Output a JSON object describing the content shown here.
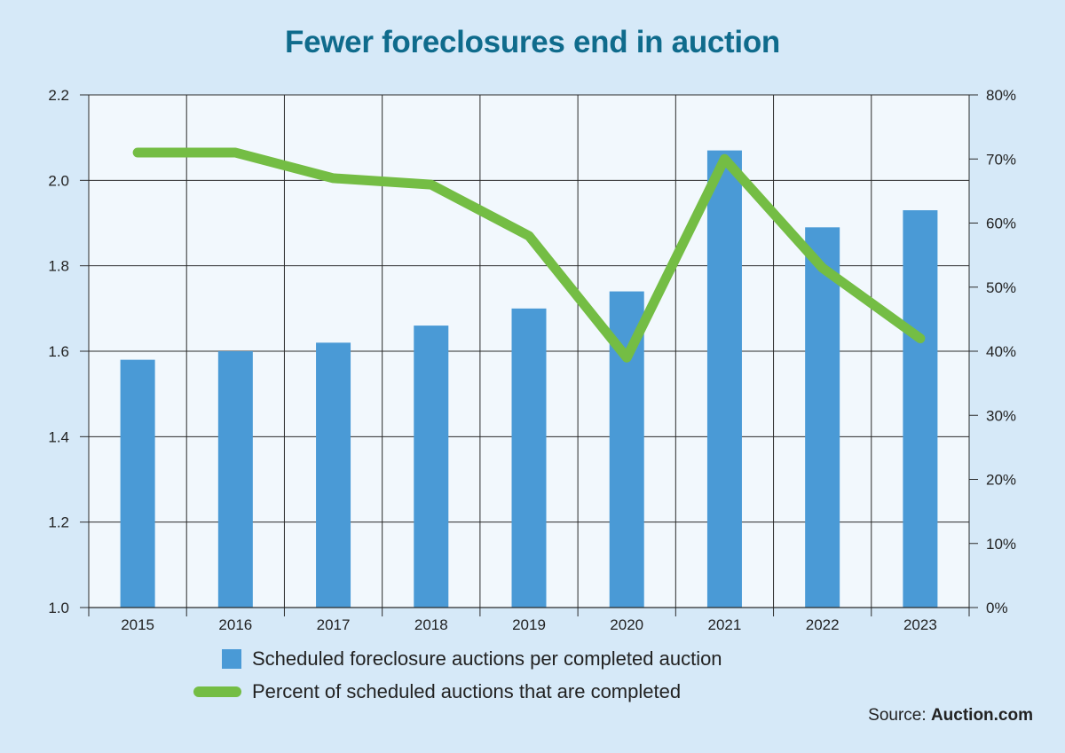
{
  "chart_data": {
    "type": "bar",
    "title": "Fewer foreclosures end in auction",
    "categories": [
      "2015",
      "2016",
      "2017",
      "2018",
      "2019",
      "2020",
      "2021",
      "2022",
      "2023"
    ],
    "series": [
      {
        "name": "Scheduled foreclosure auctions per completed auction",
        "type": "bar",
        "axis": "left",
        "color": "#4a9ad6",
        "values": [
          1.58,
          1.6,
          1.62,
          1.66,
          1.7,
          1.74,
          2.07,
          1.89,
          1.93
        ]
      },
      {
        "name": "Percent of scheduled auctions that are completed",
        "type": "line",
        "axis": "right",
        "color": "#74bd44",
        "values": [
          71,
          71,
          67,
          66,
          58,
          39,
          70,
          53,
          42
        ]
      }
    ],
    "y_left": {
      "ylim": [
        1.0,
        2.2
      ],
      "ticks": [
        "1.0",
        "1.2",
        "1.4",
        "1.6",
        "1.8",
        "2.0",
        "2.2"
      ]
    },
    "y_right": {
      "ylim": [
        0,
        80
      ],
      "ticks": [
        "0%",
        "10%",
        "20%",
        "30%",
        "40%",
        "50%",
        "60%",
        "70%",
        "80%"
      ]
    },
    "grid": true,
    "legend_position": "bottom"
  },
  "legend": {
    "bar_label": "Scheduled foreclosure auctions per completed auction",
    "line_label": "Percent of scheduled auctions that are completed"
  },
  "source": {
    "prefix": "Source: ",
    "name": "Auction.com"
  }
}
